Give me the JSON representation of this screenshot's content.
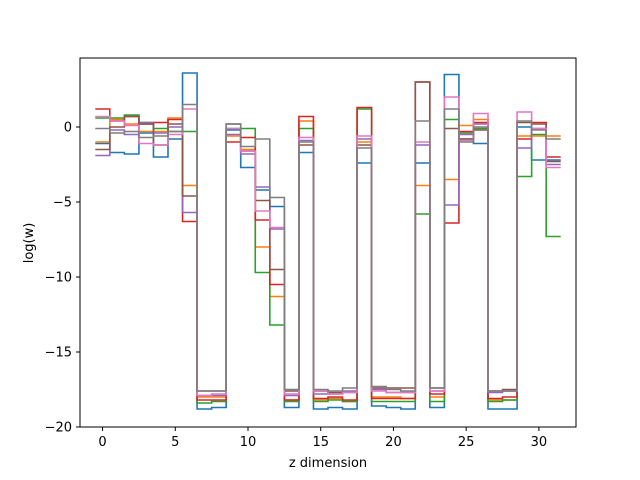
{
  "chart_data": {
    "type": "line",
    "step": true,
    "title": "",
    "xlabel": "z dimension",
    "ylabel": "log(w)",
    "xlim": [
      -1.55,
      32.55
    ],
    "ylim": [
      -20,
      4.6
    ],
    "xticks": [
      0,
      5,
      10,
      15,
      20,
      25,
      30
    ],
    "yticks": [
      -20,
      -15,
      -10,
      -5,
      0
    ],
    "grid": false,
    "legend": "none",
    "x": [
      0,
      1,
      2,
      3,
      4,
      5,
      6,
      7,
      8,
      9,
      10,
      11,
      12,
      13,
      14,
      15,
      16,
      17,
      18,
      19,
      20,
      21,
      22,
      23,
      24,
      25,
      26,
      27,
      28,
      29,
      30,
      31
    ],
    "series": [
      {
        "color": "#1f77b4",
        "values": [
          -1.1,
          -1.7,
          -1.8,
          -0.4,
          -2.0,
          -0.8,
          3.6,
          -18.8,
          -18.7,
          -0.2,
          -2.7,
          -4.2,
          -5.3,
          -18.7,
          -1.7,
          -18.8,
          -18.7,
          -18.8,
          -2.4,
          -18.6,
          -18.7,
          -18.8,
          -2.4,
          -18.7,
          3.5,
          -0.8,
          -1.1,
          -18.8,
          -18.8,
          0.0,
          -2.2,
          -2.2
        ]
      },
      {
        "color": "#ff7f0e",
        "values": [
          -1.0,
          0.5,
          0.2,
          -0.3,
          -0.3,
          0.6,
          -3.9,
          -18.0,
          -18.0,
          -0.6,
          -1.5,
          -8.0,
          -11.3,
          -18.2,
          0.4,
          -18.2,
          -18.1,
          -18.3,
          -1.0,
          -18.0,
          -18.0,
          -18.1,
          -3.9,
          -18.0,
          -3.5,
          0.1,
          0.5,
          -18.2,
          -18.2,
          -0.6,
          -0.6,
          -0.6
        ]
      },
      {
        "color": "#2ca02c",
        "values": [
          0.6,
          0.6,
          0.8,
          0.3,
          -0.1,
          -0.3,
          -0.3,
          -18.4,
          -18.3,
          -0.1,
          -0.1,
          -9.7,
          -13.2,
          -18.3,
          -0.1,
          -18.3,
          -18.2,
          -18.3,
          1.2,
          -18.3,
          -18.3,
          -18.3,
          -5.8,
          -18.3,
          0.5,
          -0.4,
          -0.1,
          -18.3,
          -18.2,
          -3.3,
          -0.5,
          -7.3
        ]
      },
      {
        "color": "#d62728",
        "values": [
          1.2,
          0.4,
          0.7,
          0.2,
          0.3,
          0.5,
          -6.3,
          -18.2,
          -18.2,
          -1.0,
          -0.7,
          -6.2,
          -10.5,
          -18.2,
          0.7,
          -18.1,
          -18.0,
          -18.2,
          1.3,
          -18.1,
          -18.1,
          -18.1,
          3.0,
          -17.8,
          -6.4,
          -0.3,
          0.3,
          -18.1,
          -18.0,
          -0.8,
          0.3,
          -2.0
        ]
      },
      {
        "color": "#9467bd",
        "values": [
          -1.9,
          -0.2,
          -0.5,
          0.3,
          -0.4,
          0.0,
          -5.7,
          -17.9,
          -17.9,
          -0.5,
          -1.8,
          -4.0,
          -6.8,
          -17.9,
          -0.9,
          -17.8,
          -17.8,
          -17.6,
          -0.8,
          -17.5,
          -17.7,
          -17.7,
          -1.2,
          -17.6,
          -5.2,
          -0.5,
          0.2,
          -17.7,
          -17.6,
          -1.4,
          -0.1,
          -2.5
        ]
      },
      {
        "color": "#8c564b",
        "values": [
          -1.5,
          0.0,
          0.7,
          0.2,
          -1.2,
          0.2,
          -4.6,
          -17.6,
          -17.6,
          0.2,
          -1.6,
          -4.9,
          -9.5,
          -17.6,
          -1.2,
          -17.6,
          -17.7,
          -17.7,
          -1.2,
          -17.4,
          -17.4,
          -17.4,
          3.0,
          -17.4,
          -0.1,
          -0.8,
          -0.2,
          -17.6,
          -17.5,
          0.3,
          0.2,
          -2.3
        ]
      },
      {
        "color": "#e377c2",
        "values": [
          0.7,
          0.4,
          0.1,
          -1.1,
          -1.2,
          -0.5,
          1.2,
          -17.9,
          -17.8,
          -0.1,
          -1.6,
          -5.6,
          -6.7,
          -17.8,
          -0.7,
          -17.6,
          -17.8,
          -17.7,
          -0.6,
          -17.6,
          -17.7,
          -17.7,
          -1.0,
          -17.6,
          2.0,
          -0.9,
          0.9,
          -17.6,
          -17.6,
          1.0,
          -0.1,
          -2.7
        ]
      },
      {
        "color": "#7f7f7f",
        "values": [
          -0.1,
          -0.4,
          -0.3,
          -0.7,
          -0.6,
          -0.3,
          1.5,
          -17.6,
          -17.6,
          0.2,
          -1.3,
          -0.8,
          -4.7,
          -17.5,
          -1.0,
          -17.5,
          -17.6,
          -17.4,
          -1.4,
          -17.3,
          -17.5,
          -17.6,
          0.4,
          -17.4,
          1.2,
          -1.0,
          0.0,
          -17.6,
          -17.6,
          0.4,
          -0.2,
          -0.8
        ]
      }
    ]
  }
}
